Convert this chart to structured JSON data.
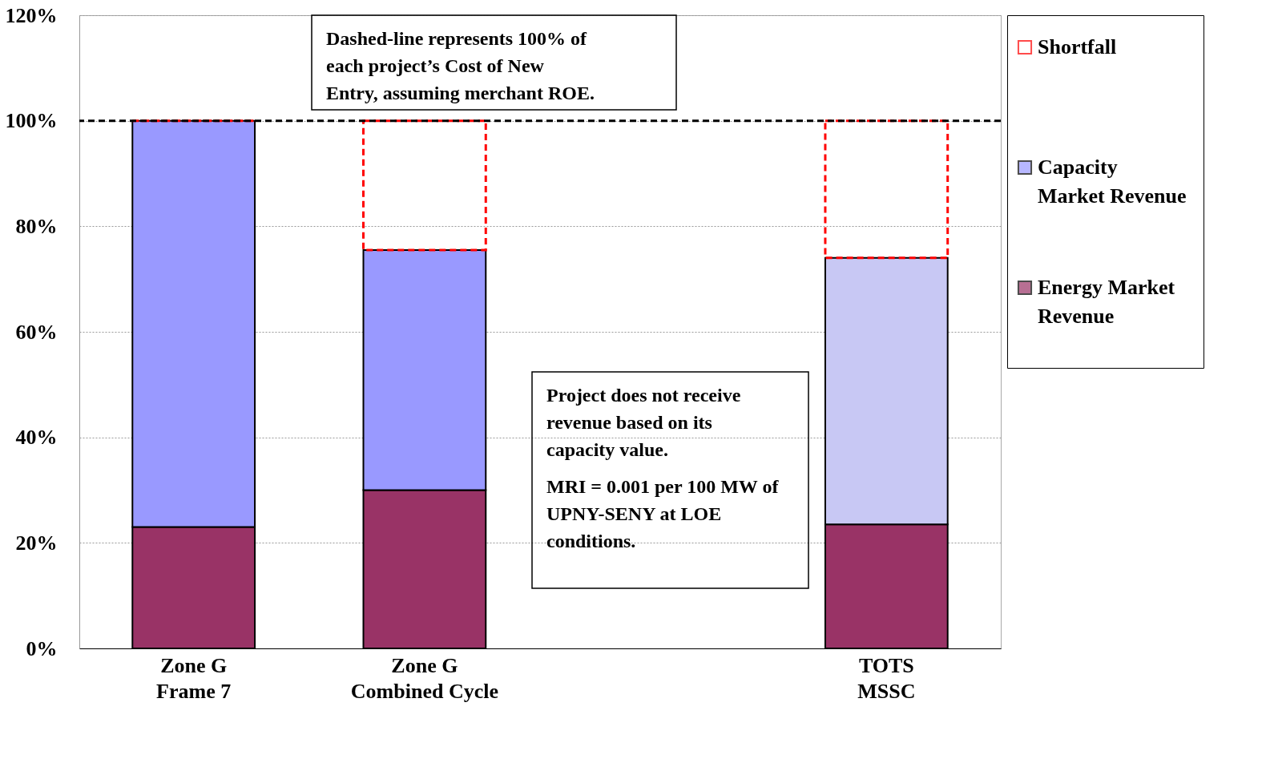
{
  "chart_data": {
    "type": "bar",
    "stacked": true,
    "categories": [
      "Zone G\nFrame 7",
      "Zone G\nCombined Cycle",
      null,
      "TOTS\nMSSC"
    ],
    "series": [
      {
        "name": "Energy Market Revenue",
        "color": "#993366",
        "values": [
          23,
          30,
          null,
          23.5
        ]
      },
      {
        "name": "Capacity Market Revenue",
        "color": "#9999ff",
        "colors": [
          "#9999ff",
          "#9999ff",
          null,
          "#c8c8f4"
        ],
        "values": [
          77,
          45.5,
          null,
          50.5
        ]
      },
      {
        "name": "Shortfall",
        "color": "#ff0000",
        "line_style": "dashed",
        "values": [
          0,
          24.5,
          null,
          26
        ]
      }
    ],
    "ylim": [
      0,
      120
    ],
    "yticks": [
      {
        "value": 0,
        "label": "0%"
      },
      {
        "value": 20,
        "label": "20%"
      },
      {
        "value": 40,
        "label": "40%"
      },
      {
        "value": 60,
        "label": "60%"
      },
      {
        "value": 80,
        "label": "80%"
      },
      {
        "value": 100,
        "label": "100%"
      },
      {
        "value": 120,
        "label": "120%"
      }
    ],
    "grid": "y",
    "legend": "right",
    "ref_lines": [
      {
        "axis": "y",
        "value": 100,
        "label": null,
        "color": "#000000",
        "line_style": "dashed"
      }
    ],
    "annotations": [
      "Dashed-line represents 100% of each project’s Cost of New Entry, assuming merchant ROE.",
      "Project does not receive revenue based on its capacity value.",
      "MRI = 0.001 per 100 MW of UPNY-SENY  at LOE conditions."
    ]
  }
}
